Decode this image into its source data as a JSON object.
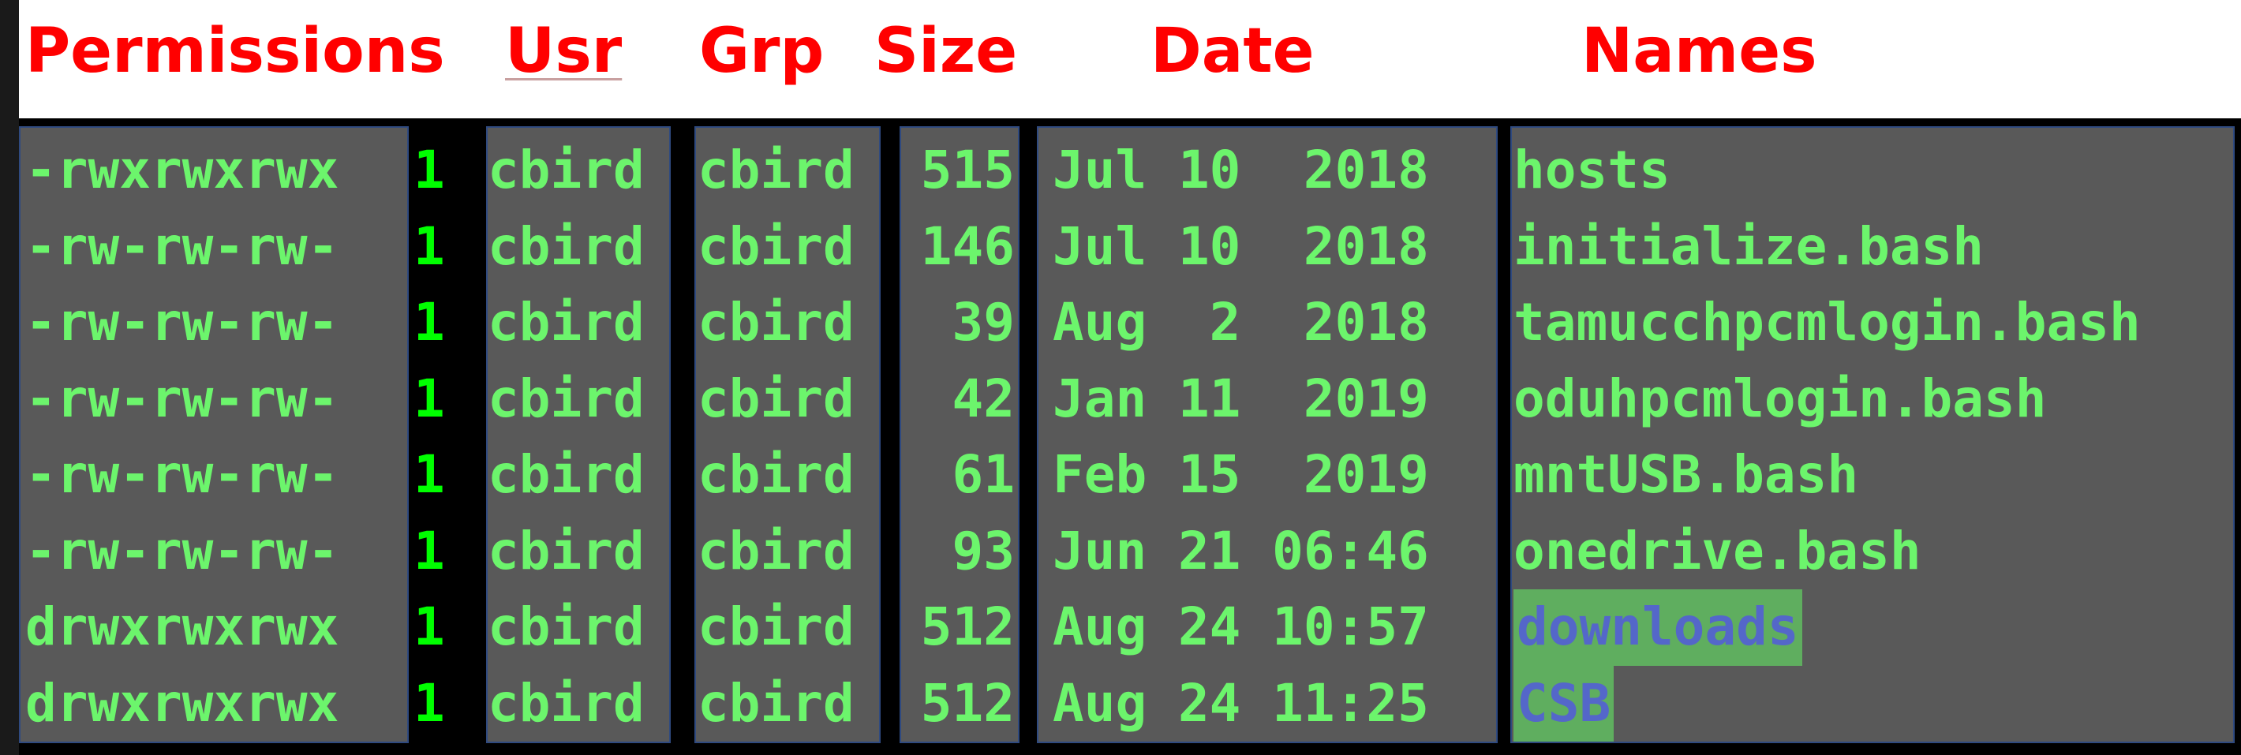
{
  "headers": {
    "permissions": "Permissions",
    "usr": "Usr",
    "grp": "Grp",
    "size": "Size",
    "date": "Date",
    "names": "Names"
  },
  "listing": [
    {
      "permissions": "-rwxrwxrwx",
      "links": "1",
      "user": "cbird",
      "group": "cbird",
      "size": "515",
      "date": "Jul 10  2018",
      "name": "hosts",
      "is_dir": false
    },
    {
      "permissions": "-rw-rw-rw-",
      "links": "1",
      "user": "cbird",
      "group": "cbird",
      "size": "146",
      "date": "Jul 10  2018",
      "name": "initialize.bash",
      "is_dir": false
    },
    {
      "permissions": "-rw-rw-rw-",
      "links": "1",
      "user": "cbird",
      "group": "cbird",
      "size": "39",
      "date": "Aug  2  2018",
      "name": "tamucchpcmlogin.bash",
      "is_dir": false
    },
    {
      "permissions": "-rw-rw-rw-",
      "links": "1",
      "user": "cbird",
      "group": "cbird",
      "size": "42",
      "date": "Jan 11  2019",
      "name": "oduhpcmlogin.bash",
      "is_dir": false
    },
    {
      "permissions": "-rw-rw-rw-",
      "links": "1",
      "user": "cbird",
      "group": "cbird",
      "size": "61",
      "date": "Feb 15  2019",
      "name": "mntUSB.bash",
      "is_dir": false
    },
    {
      "permissions": "-rw-rw-rw-",
      "links": "1",
      "user": "cbird",
      "group": "cbird",
      "size": "93",
      "date": "Jun 21 06:46",
      "name": "onedrive.bash",
      "is_dir": false
    },
    {
      "permissions": "drwxrwxrwx",
      "links": "1",
      "user": "cbird",
      "group": "cbird",
      "size": "512",
      "date": "Aug 24 10:57",
      "name": "downloads",
      "is_dir": true
    },
    {
      "permissions": "drwxrwxrwx",
      "links": "1",
      "user": "cbird",
      "group": "cbird",
      "size": "512",
      "date": "Aug 24 11:25",
      "name": "CSB",
      "is_dir": true
    }
  ],
  "colors": {
    "header_text": "#ff0000",
    "listing_text": "#6cf56c",
    "link_count_text": "#00ff00",
    "panel_background": "#595959",
    "directory_highlight": "#5fae5f",
    "directory_text": "#5467c9",
    "terminal_background": "#000000"
  }
}
